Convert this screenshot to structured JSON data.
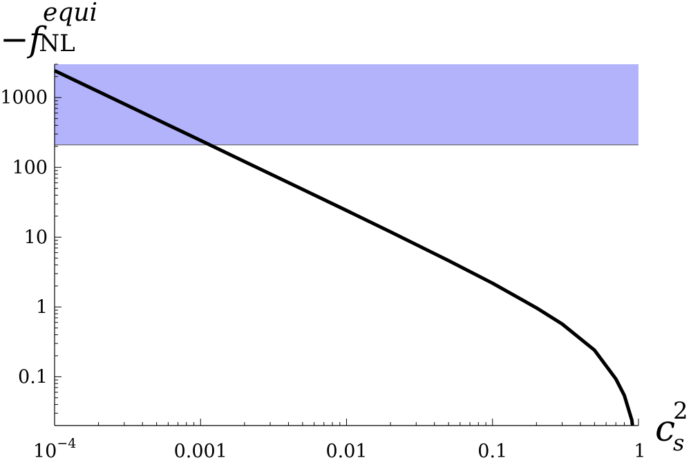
{
  "chart_data": {
    "type": "line",
    "title": "",
    "xlabel": {
      "base": "c",
      "subscript": "s",
      "superscript": "2"
    },
    "ylabel": {
      "prefix": "−",
      "base": "f",
      "subscript": "NL",
      "superscript": "equi"
    },
    "x_scale": "log",
    "y_scale": "log",
    "xlim": [
      0.0001,
      1
    ],
    "ylim": [
      0.02,
      3000
    ],
    "x_ticks": [
      {
        "value": 0.0001,
        "label": "10",
        "exp": "−4"
      },
      {
        "value": 0.001,
        "label": "0.001"
      },
      {
        "value": 0.01,
        "label": "0.01"
      },
      {
        "value": 0.1,
        "label": "0.1"
      },
      {
        "value": 1,
        "label": "1"
      }
    ],
    "y_ticks": [
      {
        "value": 0.1,
        "label": "0.1"
      },
      {
        "value": 1,
        "label": "1"
      },
      {
        "value": 10,
        "label": "10"
      },
      {
        "value": 100,
        "label": "100"
      },
      {
        "value": 1000,
        "label": "1000"
      }
    ],
    "band": {
      "y_min": 210,
      "y_max": 3000,
      "color": "#b3b3fb",
      "edge_color": "#555555"
    },
    "series": [
      {
        "color": "#000000",
        "points": [
          [
            0.0001,
            2430
          ],
          [
            0.0002,
            1215
          ],
          [
            0.0005,
            486
          ],
          [
            0.001,
            243
          ],
          [
            0.002,
            121
          ],
          [
            0.005,
            48.4
          ],
          [
            0.01,
            24.1
          ],
          [
            0.02,
            11.9
          ],
          [
            0.05,
            4.61
          ],
          [
            0.1,
            2.19
          ],
          [
            0.2,
            0.97
          ],
          [
            0.3,
            0.57
          ],
          [
            0.5,
            0.24
          ],
          [
            0.7,
            0.093
          ],
          [
            0.8,
            0.054
          ],
          [
            0.9,
            0.024
          ],
          [
            0.91,
            0.02
          ]
        ]
      }
    ],
    "grid": false
  }
}
